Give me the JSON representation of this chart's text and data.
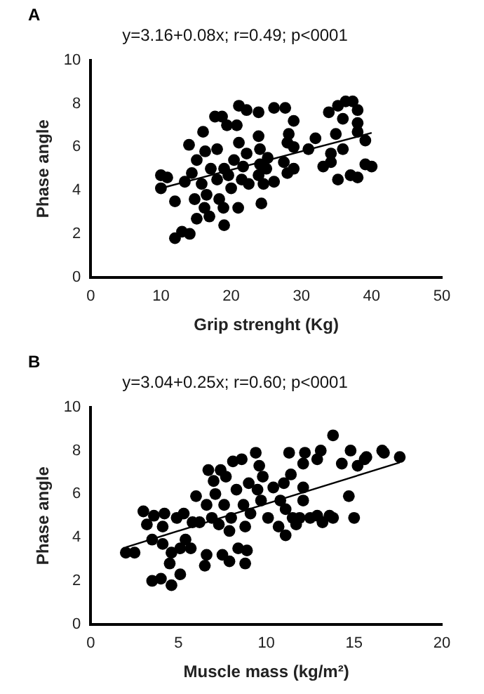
{
  "chart_data": [
    {
      "type": "scatter",
      "title": "A",
      "subtitle": "y=3.16+0.08x; r=0.49; p<0001",
      "xlabel": "Grip strenght (Kg)",
      "ylabel": "Phase angle",
      "xlim": [
        0,
        50
      ],
      "xticks": [
        0,
        10,
        20,
        30,
        40,
        50
      ],
      "ylim": [
        0,
        10
      ],
      "yticks": [
        0,
        2,
        4,
        6,
        8,
        10
      ],
      "marker": "circle",
      "series": [
        {
          "type": "scatter",
          "color": "#000000",
          "x": [
            10,
            10,
            10.9,
            12,
            12,
            13,
            14.1,
            14,
            13.4,
            14.4,
            14.8,
            15.1,
            15.1,
            16,
            15.8,
            16.2,
            16.5,
            16.9,
            16.3,
            17.1,
            17.7,
            18,
            18,
            18.3,
            18.7,
            18.9,
            19,
            19.4,
            19,
            19.6,
            20,
            20.4,
            20.8,
            21.1,
            21,
            21.1,
            21.5,
            22.2,
            22.2,
            21.7,
            22.5,
            23.9,
            23.9,
            24.1,
            24.3,
            24.1,
            23.9,
            24.6,
            25.2,
            25,
            26.1,
            26.1,
            27.7,
            28.2,
            28,
            27.5,
            28,
            28.9,
            28.9,
            28.9,
            31,
            32,
            33.1,
            33.9,
            34.2,
            34.2,
            34.9,
            35.2,
            35.2,
            36.3,
            35.9,
            35.9,
            37.3,
            38,
            38,
            38,
            38,
            37,
            39.1,
            39.1,
            40
          ],
          "values": [
            4.1,
            4.7,
            4.6,
            3.5,
            1.8,
            2.1,
            2,
            6.1,
            4.4,
            4.8,
            3.6,
            5.4,
            2.7,
            6.7,
            4.3,
            3.2,
            3.8,
            2.8,
            5.8,
            5,
            7.4,
            5.9,
            4.5,
            3.6,
            7.4,
            3.2,
            2.4,
            7,
            5,
            4.7,
            4.1,
            5.4,
            7,
            7.9,
            3.2,
            6.2,
            4.5,
            7.7,
            5.7,
            5.1,
            4.3,
            7.6,
            6.5,
            5.9,
            3.4,
            5.2,
            4.7,
            4.3,
            5.5,
            5,
            7.8,
            4.4,
            7.8,
            6.6,
            6.2,
            5.3,
            4.8,
            7.2,
            6,
            5,
            5.9,
            6.4,
            5.1,
            7.6,
            5.7,
            5.3,
            6.6,
            4.5,
            7.9,
            8.1,
            7.3,
            5.9,
            8.1,
            7.7,
            7.1,
            6.7,
            4.6,
            4.7,
            6.3,
            5.2,
            5.1
          ]
        },
        {
          "type": "line",
          "color": "#000000",
          "marker": "none",
          "x": [
            10,
            40
          ],
          "values": [
            4.1,
            6.65
          ]
        }
      ]
    },
    {
      "type": "scatter",
      "title": "B",
      "subtitle": "y=3.04+0.25x; r=0.60; p<0001",
      "xlabel": "Muscle mass (kg/m²)",
      "ylabel": "Phase angle",
      "xlim": [
        0,
        20
      ],
      "xticks": [
        0,
        5,
        10,
        15,
        20
      ],
      "ylim": [
        0,
        10
      ],
      "yticks": [
        0,
        2,
        4,
        6,
        8,
        10
      ],
      "marker": "circle",
      "series": [
        {
          "type": "scatter",
          "color": "#000000",
          "x": [
            2,
            2.5,
            3,
            3.2,
            3.5,
            3.6,
            3.5,
            4,
            4.1,
            4.2,
            4.1,
            4.5,
            4.6,
            4.6,
            4.9,
            5.1,
            5.1,
            5.3,
            5.4,
            5.7,
            5.8,
            6,
            6.2,
            6.5,
            6.6,
            6.6,
            6.7,
            6.9,
            7,
            7.1,
            7.3,
            7.4,
            7.5,
            7.6,
            7.7,
            7.9,
            7.9,
            8,
            8.1,
            8.3,
            8.4,
            8.6,
            8.7,
            8.8,
            8.8,
            8.9,
            9,
            9.1,
            9.4,
            9.5,
            9.6,
            9.7,
            9.8,
            10.1,
            10.4,
            10.7,
            10.8,
            11,
            11.1,
            11.1,
            11.3,
            11.4,
            11.5,
            11.7,
            11.9,
            12.1,
            12.1,
            12.2,
            12.1,
            12.5,
            12.9,
            12.9,
            13.1,
            13.2,
            13.6,
            13.8,
            13.8,
            14.3,
            14.7,
            14.8,
            15,
            15.2,
            15.6,
            15.7,
            16.6,
            16.7,
            17.6
          ],
          "values": [
            3.3,
            3.3,
            5.2,
            4.6,
            3.9,
            5,
            2,
            2.1,
            4.5,
            5.1,
            3.7,
            2.8,
            1.8,
            3.3,
            4.9,
            3.5,
            2.3,
            5.1,
            3.9,
            3.5,
            4.7,
            5.9,
            4.7,
            2.7,
            3.2,
            5.5,
            7.1,
            4.9,
            6.6,
            6,
            4.6,
            7.1,
            3.2,
            5.5,
            6.8,
            2.9,
            4.3,
            4.9,
            7.5,
            6.2,
            3.5,
            7.6,
            5.5,
            4.5,
            2.8,
            3.4,
            6.5,
            5.1,
            7.9,
            6.2,
            7.3,
            5.7,
            6.8,
            4.9,
            6.3,
            4.5,
            5.7,
            6.5,
            5.3,
            4.1,
            7.9,
            6.9,
            4.9,
            4.6,
            4.9,
            7.4,
            5.7,
            7.9,
            6.3,
            4.9,
            5,
            7.6,
            8,
            4.7,
            5,
            4.9,
            8.7,
            7.4,
            5.9,
            8,
            4.9,
            7.3,
            7.6,
            7.7,
            8,
            7.9,
            7.7
          ]
        },
        {
          "type": "line",
          "color": "#000000",
          "marker": "none",
          "x": [
            2,
            17.6
          ],
          "values": [
            3.55,
            7.45
          ]
        }
      ]
    }
  ]
}
